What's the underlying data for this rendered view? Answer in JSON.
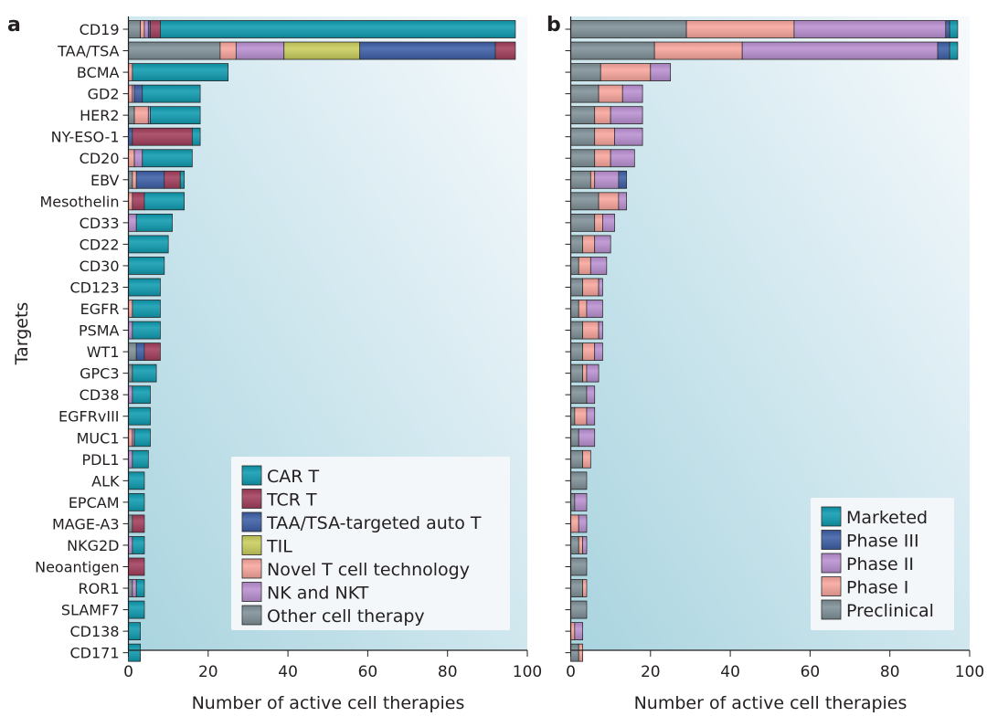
{
  "chart_data": [
    {
      "panel": "a",
      "type": "bar",
      "orientation": "horizontal",
      "stacked": true,
      "xlabel": "Number of active cell therapies",
      "ylabel": "Targets",
      "xlim": [
        0,
        100
      ],
      "xticks": [
        0,
        20,
        40,
        60,
        80,
        100
      ],
      "legend_position": "bottom-right",
      "categories": [
        "CD19",
        "TAA/TSA",
        "BCMA",
        "GD2",
        "HER2",
        "NY-ESO-1",
        "CD20",
        "EBV",
        "Mesothelin",
        "CD33",
        "CD22",
        "CD30",
        "CD123",
        "EGFR",
        "PSMA",
        "WT1",
        "GPC3",
        "CD38",
        "EGFRvIII",
        "MUC1",
        "PDL1",
        "ALK",
        "EPCAM",
        "MAGE-A3",
        "NKG2D",
        "Neoantigen",
        "ROR1",
        "SLAMF7",
        "CD138",
        "CD171"
      ],
      "series": [
        {
          "name": "Other cell therapy",
          "color": "#7f9097",
          "values": [
            3,
            23,
            0,
            0,
            1.5,
            0,
            0,
            1,
            0,
            0,
            0,
            0,
            0,
            0,
            0,
            2,
            1,
            0,
            0,
            0,
            0,
            0,
            0,
            1,
            0,
            0,
            1,
            0,
            0,
            0
          ]
        },
        {
          "name": "Novel T cell technology",
          "color": "#f7a59c",
          "values": [
            1,
            4,
            1,
            1,
            3.5,
            0,
            1.5,
            1,
            1,
            0,
            0,
            0,
            0,
            1,
            0,
            0,
            0,
            0,
            0,
            1,
            0,
            0,
            0,
            0,
            0,
            0,
            0,
            0,
            0,
            0
          ]
        },
        {
          "name": "NK and NKT",
          "color": "#b98fd0",
          "values": [
            1,
            12,
            0,
            0.5,
            0.5,
            0,
            2,
            0,
            0,
            2,
            0,
            0,
            0,
            0,
            1,
            0,
            0,
            1,
            0,
            0.5,
            1,
            0,
            0,
            0,
            1,
            0,
            1,
            0,
            0,
            0
          ]
        },
        {
          "name": "TIL",
          "color": "#c9cd5c",
          "values": [
            0,
            19,
            0,
            0,
            0,
            0,
            0,
            0,
            0,
            0,
            0,
            0,
            0,
            0,
            0,
            0,
            0,
            0,
            0,
            0,
            0,
            0,
            0,
            0,
            0,
            0,
            0,
            0,
            0,
            0
          ]
        },
        {
          "name": "TAA/TSA-targeted auto T",
          "color": "#3d5ea6",
          "values": [
            0.5,
            34,
            0,
            2,
            0,
            1,
            0,
            7,
            0,
            0,
            0,
            0,
            0,
            0,
            0,
            2,
            0,
            0,
            0,
            0,
            0,
            0,
            0,
            0,
            0,
            0,
            0,
            0,
            0,
            0
          ]
        },
        {
          "name": "TCR T",
          "color": "#a23d5c",
          "values": [
            2.5,
            5,
            0,
            0,
            0,
            15,
            0,
            4,
            3,
            0,
            0,
            0,
            0,
            0,
            0,
            4,
            0,
            0,
            0,
            0,
            0,
            0,
            0,
            3,
            0,
            4,
            0,
            0,
            0,
            0
          ]
        },
        {
          "name": "CAR T",
          "color": "#0e9bb0",
          "values": [
            89,
            0,
            24,
            14.5,
            12.5,
            2,
            12.5,
            1,
            10,
            9,
            10,
            9,
            8,
            7,
            7,
            0,
            6,
            4.5,
            5.5,
            4,
            4,
            4,
            4,
            0,
            3,
            0,
            2,
            4,
            3,
            3
          ]
        }
      ],
      "legend_order": [
        "CAR T",
        "TCR T",
        "TAA/TSA-targeted auto T",
        "TIL",
        "Novel T cell technology",
        "NK and NKT",
        "Other cell therapy"
      ]
    },
    {
      "panel": "b",
      "type": "bar",
      "orientation": "horizontal",
      "stacked": true,
      "xlabel": "Number of active cell therapies",
      "ylabel": "",
      "xlim": [
        0,
        100
      ],
      "xticks": [
        0,
        20,
        40,
        60,
        80,
        100
      ],
      "legend_position": "bottom-right",
      "categories": [
        "CD19",
        "TAA/TSA",
        "BCMA",
        "GD2",
        "HER2",
        "NY-ESO-1",
        "CD20",
        "EBV",
        "Mesothelin",
        "CD33",
        "CD22",
        "CD30",
        "CD123",
        "EGFR",
        "PSMA",
        "WT1",
        "GPC3",
        "CD38",
        "EGFRvIII",
        "MUC1",
        "PDL1",
        "ALK",
        "EPCAM",
        "MAGE-A3",
        "NKG2D",
        "Neoantigen",
        "ROR1",
        "SLAMF7",
        "CD138",
        "CD171"
      ],
      "series": [
        {
          "name": "Preclinical",
          "color": "#7f9097",
          "values": [
            29,
            21,
            7.5,
            7,
            6,
            6,
            6,
            5,
            7,
            6,
            3,
            2,
            3,
            2,
            3,
            3,
            3,
            4,
            1,
            2,
            3,
            4,
            1,
            0,
            2,
            4,
            3,
            4,
            0,
            2
          ]
        },
        {
          "name": "Phase I",
          "color": "#f7a59c",
          "values": [
            27,
            22,
            12.5,
            6,
            4,
            5,
            4,
            1,
            5,
            2,
            3,
            3,
            4,
            2,
            4,
            3,
            1,
            0,
            3,
            0,
            2,
            0,
            0,
            2,
            1,
            0,
            1,
            0,
            1,
            1
          ]
        },
        {
          "name": "Phase II",
          "color": "#b98fd0",
          "values": [
            38,
            49,
            5,
            5,
            8,
            7,
            6,
            6,
            2,
            3,
            4,
            4,
            1,
            4,
            1,
            2,
            3,
            2,
            2,
            4,
            0,
            0,
            3,
            2,
            1,
            0,
            0,
            0,
            2,
            0
          ]
        },
        {
          "name": "Phase III",
          "color": "#3d5ea6",
          "values": [
            1,
            3,
            0,
            0,
            0,
            0,
            0,
            2,
            0,
            0,
            0,
            0,
            0,
            0,
            0,
            0,
            0,
            0,
            0,
            0,
            0,
            0,
            0,
            0,
            0,
            0,
            0,
            0,
            0,
            0
          ]
        },
        {
          "name": "Marketed",
          "color": "#0e9bb0",
          "values": [
            2,
            2,
            0,
            0,
            0,
            0,
            0,
            0,
            0,
            0,
            0,
            0,
            0,
            0,
            0,
            0,
            0,
            0,
            0,
            0,
            0,
            0,
            0,
            0,
            0,
            0,
            0,
            0,
            0,
            0
          ]
        }
      ],
      "legend_order": [
        "Marketed",
        "Phase III",
        "Phase II",
        "Phase I",
        "Preclinical"
      ]
    }
  ],
  "labels": {
    "panel_a": "a",
    "panel_b": "b",
    "ylabel": "Targets",
    "xlabel_a": "Number of active cell therapies",
    "xlabel_b": "Number of active cell therapies"
  }
}
